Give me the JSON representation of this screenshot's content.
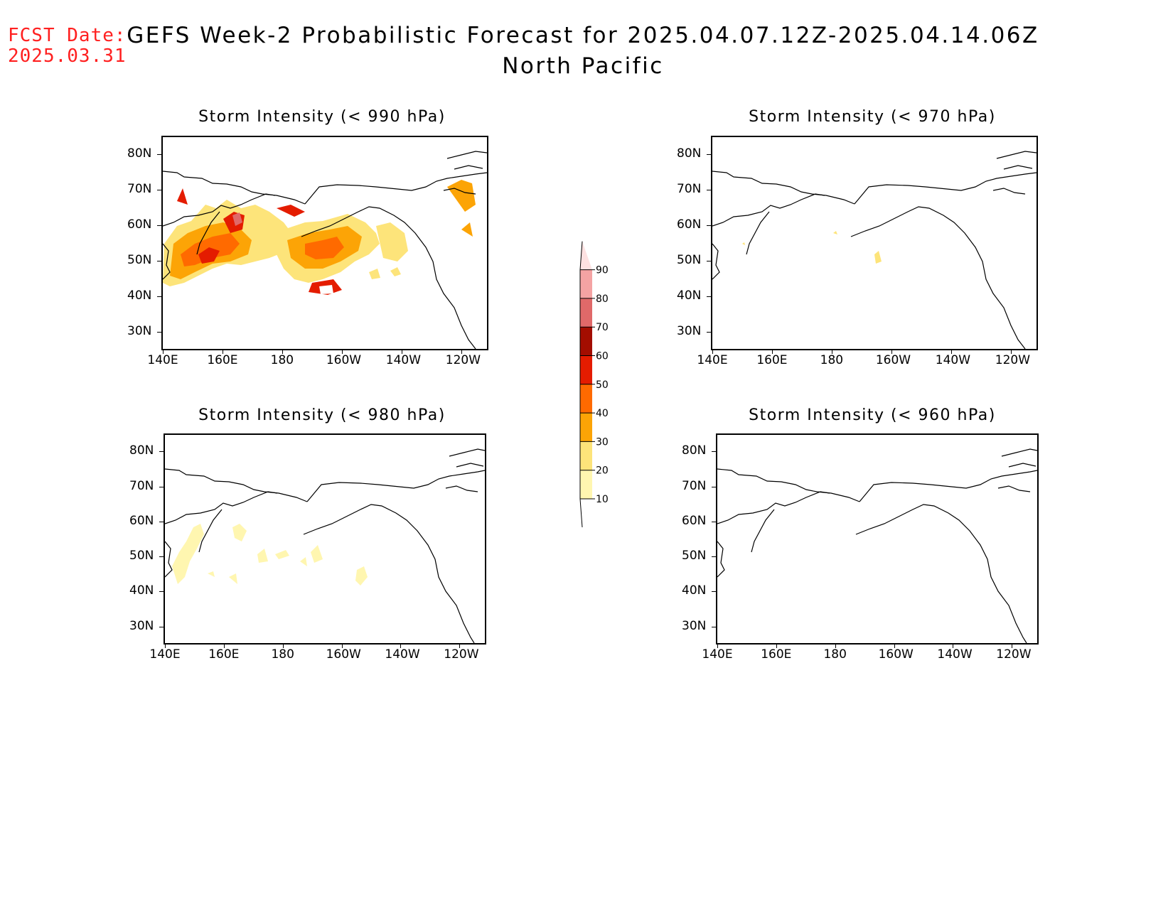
{
  "header": {
    "fcst_label": "FCST Date:",
    "fcst_date": "2025.03.31",
    "title_line1": "GEFS Week-2 Probabilistic Forecast for 2025.04.07.12Z-2025.04.14.06Z",
    "title_line2": "North Pacific"
  },
  "panels": [
    {
      "title": "Storm Intensity (< 990 hPa)"
    },
    {
      "title": "Storm Intensity (< 970 hPa)"
    },
    {
      "title": "Storm Intensity (< 980 hPa)"
    },
    {
      "title": "Storm Intensity (< 960 hPa)"
    }
  ],
  "axes": {
    "lat_labels": [
      "80N",
      "70N",
      "60N",
      "50N",
      "40N",
      "30N"
    ],
    "lon_labels": [
      "140E",
      "160E",
      "180",
      "160W",
      "140W",
      "120W"
    ]
  },
  "colorbar": {
    "levels": [
      "10",
      "20",
      "30",
      "40",
      "50",
      "60",
      "70",
      "80",
      "90"
    ],
    "colors": [
      "#fff6b0",
      "#fde47a",
      "#fca406",
      "#ff6a00",
      "#e41c00",
      "#a30d00",
      "#e06969",
      "#f4a3a3",
      "#fde1e1"
    ]
  }
}
